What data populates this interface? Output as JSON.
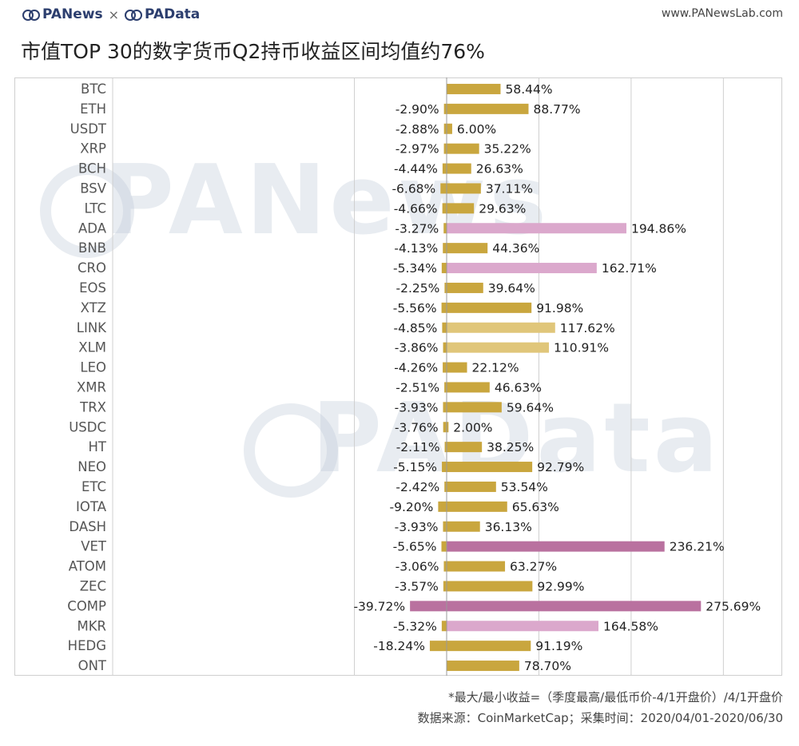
{
  "header": {
    "logo_left": "PANews",
    "separator": "×",
    "logo_right": "PAData",
    "site": "www.PANewsLab.com"
  },
  "title": "市值TOP 30的数字货币Q2持币收益区间均值约76%",
  "watermarks": [
    "PANews",
    "PAData"
  ],
  "footnote": "*最大/最小收益=（季度最高/最低币价-4/1开盘价）/4/1开盘价",
  "source": "数据来源：CoinMarketCap；采集时间：2020/04/01-2020/06/30",
  "colors": {
    "gold": "#c9a63e",
    "light_gold": "#e0c67a",
    "light_pink": "#dba8cc",
    "mauve": "#b9719f",
    "axis": "#cfcfcf",
    "zero_line": "#999999"
  },
  "chart_data": {
    "type": "bar",
    "orientation": "horizontal",
    "unit": "%",
    "categories": [
      "BTC",
      "ETH",
      "USDT",
      "XRP",
      "BCH",
      "BSV",
      "LTC",
      "ADA",
      "BNB",
      "CRO",
      "EOS",
      "XTZ",
      "LINK",
      "XLM",
      "LEO",
      "XMR",
      "TRX",
      "USDC",
      "HT",
      "NEO",
      "ETC",
      "IOTA",
      "DASH",
      "VET",
      "ATOM",
      "ZEC",
      "COMP",
      "MKR",
      "HEDG",
      "ONT"
    ],
    "series": [
      {
        "values": [
          0,
          -2.9,
          -2.88,
          -2.97,
          -4.44,
          -6.68,
          -4.66,
          -3.27,
          -4.13,
          -5.34,
          -2.25,
          -5.56,
          -4.85,
          -3.86,
          -4.26,
          -2.51,
          -3.93,
          -3.76,
          -2.11,
          -5.15,
          -2.42,
          -9.2,
          -3.93,
          -5.65,
          -3.06,
          -3.57,
          -39.72,
          -5.32,
          -18.24,
          0
        ],
        "labels": [
          "",
          "-2.90%",
          "-2.88%",
          "-2.97%",
          "-4.44%",
          "-6.68%",
          "-4.66%",
          "-3.27%",
          "-4.13%",
          "-5.34%",
          "-2.25%",
          "-5.56%",
          "-4.85%",
          "-3.86%",
          "-4.26%",
          "-2.51%",
          "-3.93%",
          "-3.76%",
          "-2.11%",
          "-5.15%",
          "-2.42%",
          "-9.20%",
          "-3.93%",
          "-5.65%",
          "-3.06%",
          "-3.57%",
          "-39.72%",
          "-5.32%",
          "-18.24%",
          ""
        ]
      },
      {
        "values": [
          58.44,
          88.77,
          6.0,
          35.22,
          26.63,
          37.11,
          29.63,
          194.86,
          44.36,
          162.71,
          39.64,
          91.98,
          117.62,
          110.91,
          22.12,
          46.63,
          59.64,
          2.0,
          38.25,
          92.79,
          53.54,
          65.63,
          36.13,
          236.21,
          63.27,
          92.99,
          275.69,
          164.58,
          91.19,
          78.7
        ],
        "labels": [
          "58.44%",
          "88.77%",
          "6.00%",
          "35.22%",
          "26.63%",
          "37.11%",
          "29.63%",
          "194.86%",
          "44.36%",
          "162.71%",
          "39.64%",
          "91.98%",
          "117.62%",
          "110.91%",
          "22.12%",
          "46.63%",
          "59.64%",
          "2.00%",
          "38.25%",
          "92.79%",
          "53.54%",
          "65.63%",
          "36.13%",
          "236.21%",
          "63.27%",
          "92.99%",
          "275.69%",
          "164.58%",
          "91.19%",
          "78.70%"
        ]
      }
    ],
    "xlim": [
      -100,
      350
    ],
    "grid": true,
    "legend": "none"
  }
}
